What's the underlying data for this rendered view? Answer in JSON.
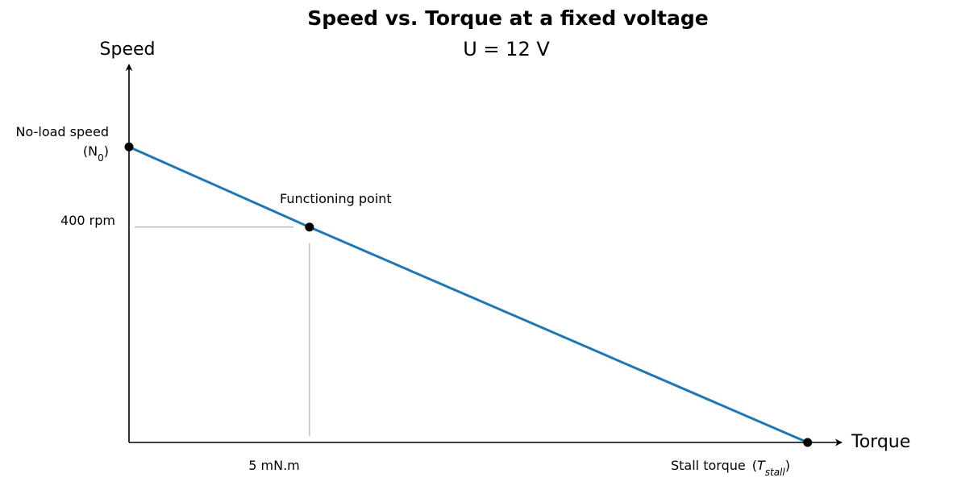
{
  "chart_data": {
    "type": "line",
    "title": "Speed vs. Torque at a fixed voltage",
    "subtitle": "U = 12 V",
    "ylabel": "Speed",
    "xlabel": "Torque",
    "grid": false,
    "legend": "none",
    "line_color": "#1f77b4",
    "series": [
      {
        "points": [
          {
            "x": 0,
            "y": 549
          },
          {
            "x": 5,
            "y": 400
          },
          {
            "x": 18.8,
            "y": 0
          }
        ]
      }
    ],
    "xlim": [
      0,
      19.7
    ],
    "ylim": [
      0,
      702
    ],
    "annotations": {
      "no_load": {
        "line1": "No-load speed",
        "prefix": "(N",
        "sub": "0",
        "suffix": ")",
        "x": 0,
        "y": 549
      },
      "functioning_point": {
        "text": "Functioning point",
        "x": 5,
        "y": 400
      },
      "speed_value": {
        "text": "400 rpm",
        "y": 400
      },
      "torque_value": {
        "text": "5 mN.m",
        "x": 5
      },
      "stall": {
        "text": "Stall torque",
        "prefix": "(",
        "italic": "T",
        "sub": "stall",
        "suffix": ")",
        "x": 18.8,
        "y": 0
      }
    }
  }
}
